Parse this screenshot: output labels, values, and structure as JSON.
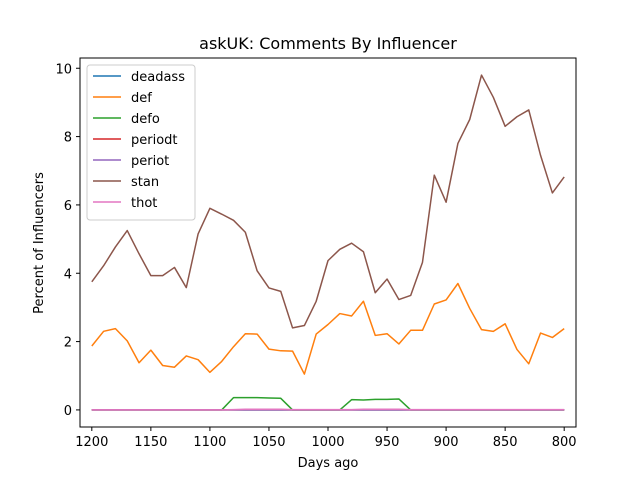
{
  "chart_data": {
    "type": "line",
    "title": "askUK: Comments By Influencer",
    "xlabel": "Days ago",
    "ylabel": "Percent of Influencers",
    "xlim": [
      1210,
      790
    ],
    "ylim": [
      -0.5,
      10.3
    ],
    "xticks": [
      1200,
      1150,
      1100,
      1050,
      1000,
      950,
      900,
      850,
      800
    ],
    "yticks": [
      0,
      2,
      4,
      6,
      8,
      10
    ],
    "x_reversed": true,
    "grid": false,
    "legend_position": "top-left",
    "x": [
      1200,
      1190,
      1180,
      1170,
      1160,
      1150,
      1140,
      1130,
      1120,
      1110,
      1100,
      1090,
      1080,
      1070,
      1060,
      1050,
      1040,
      1030,
      1020,
      1010,
      1000,
      990,
      980,
      970,
      960,
      950,
      940,
      930,
      920,
      910,
      900,
      890,
      880,
      870,
      860,
      850,
      840,
      830,
      820,
      810,
      800
    ],
    "series": [
      {
        "name": "deadass",
        "color": "#1f77b4",
        "values": [
          0,
          0,
          0,
          0,
          0,
          0,
          0,
          0,
          0,
          0,
          0,
          0,
          0,
          0,
          0,
          0,
          0,
          0,
          0,
          0,
          0,
          0,
          0,
          0,
          0,
          0,
          0,
          0,
          0,
          0,
          0,
          0,
          0,
          0,
          0,
          0,
          0,
          0,
          0,
          0,
          0
        ]
      },
      {
        "name": "def",
        "color": "#ff7f0e",
        "values": [
          1.87,
          2.3,
          2.38,
          2.02,
          1.38,
          1.75,
          1.3,
          1.25,
          1.58,
          1.47,
          1.1,
          1.42,
          1.85,
          2.23,
          2.22,
          1.78,
          1.73,
          1.72,
          1.05,
          2.22,
          2.5,
          2.82,
          2.75,
          3.18,
          2.18,
          2.23,
          1.93,
          2.33,
          2.33,
          3.1,
          3.22,
          3.7,
          2.97,
          2.35,
          2.3,
          2.52,
          1.77,
          1.35,
          2.25,
          2.12,
          2.38
        ]
      },
      {
        "name": "defo",
        "color": "#2ca02c",
        "values": [
          0,
          0,
          0,
          0,
          0,
          0,
          0,
          0,
          0,
          0,
          0,
          0,
          0.36,
          0.36,
          0.36,
          0.35,
          0.34,
          0,
          0,
          0,
          0,
          0,
          0.3,
          0.29,
          0.31,
          0.31,
          0.32,
          0,
          0,
          0,
          0,
          0,
          0,
          0,
          0,
          0,
          0,
          0,
          0,
          0,
          0
        ]
      },
      {
        "name": "periodt",
        "color": "#d62728",
        "values": [
          0,
          0,
          0,
          0,
          0,
          0,
          0,
          0,
          0,
          0,
          0,
          0,
          0,
          0,
          0,
          0,
          0,
          0,
          0,
          0,
          0,
          0,
          0,
          0,
          0,
          0,
          0,
          0,
          0,
          0,
          0,
          0,
          0,
          0,
          0,
          0,
          0,
          0,
          0,
          0,
          0
        ]
      },
      {
        "name": "periot",
        "color": "#9467bd",
        "values": [
          0,
          0,
          0,
          0,
          0,
          0,
          0,
          0,
          0,
          0,
          0,
          0,
          0,
          0,
          0,
          0,
          0,
          0,
          0,
          0,
          0,
          0,
          0,
          0,
          0,
          0,
          0,
          0,
          0,
          0,
          0,
          0,
          0,
          0,
          0,
          0,
          0,
          0,
          0,
          0,
          0
        ]
      },
      {
        "name": "stan",
        "color": "#8c564b",
        "values": [
          3.75,
          4.22,
          4.77,
          5.25,
          4.57,
          3.93,
          3.93,
          4.17,
          3.58,
          5.15,
          5.9,
          5.73,
          5.55,
          5.2,
          4.07,
          3.57,
          3.47,
          2.4,
          2.47,
          3.18,
          4.37,
          4.7,
          4.88,
          4.63,
          3.43,
          3.83,
          3.23,
          3.35,
          4.32,
          6.87,
          6.08,
          7.8,
          8.5,
          9.8,
          9.15,
          8.3,
          8.58,
          8.78,
          7.45,
          6.35,
          6.82
        ]
      },
      {
        "name": "thot",
        "color": "#e377c2",
        "values": [
          0,
          0,
          0,
          0,
          0,
          0,
          0,
          0,
          0,
          0,
          0,
          0,
          0.01,
          0.02,
          0.02,
          0.02,
          0.02,
          0.01,
          0.01,
          0.01,
          0.01,
          0.01,
          0.01,
          0.02,
          0.02,
          0.02,
          0.02,
          0.01,
          0.01,
          0.01,
          0.01,
          0.01,
          0.01,
          0.01,
          0.01,
          0.01,
          0.01,
          0.01,
          0.01,
          0.01,
          0.01
        ]
      }
    ]
  }
}
